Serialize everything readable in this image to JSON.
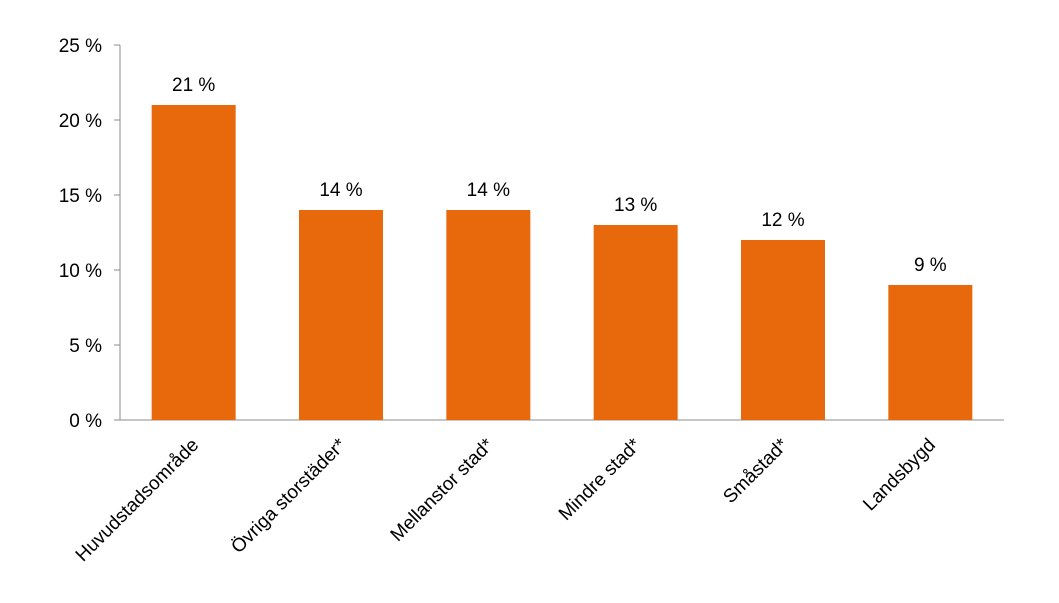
{
  "chart_data": {
    "type": "bar",
    "categories": [
      "Huvudstadsområde",
      "Övriga storstäder*",
      "Mellanstor stad*",
      "Mindre stad*",
      "Småstad*",
      "Landsbygd"
    ],
    "values": [
      21,
      14,
      14,
      13,
      12,
      9
    ],
    "data_labels": [
      "21 %",
      "14 %",
      "14 %",
      "13 %",
      "12 %",
      "9 %"
    ],
    "y_ticks": [
      0,
      5,
      10,
      15,
      20,
      25
    ],
    "y_tick_labels": [
      "0 %",
      "5 %",
      "10 %",
      "15 %",
      "20 %",
      "25 %"
    ],
    "ylim": [
      0,
      25
    ],
    "grid": false,
    "legend": "none",
    "colors": {
      "bar": "#E8690B",
      "axis": "#8C8C8C",
      "text": "#000000"
    }
  }
}
